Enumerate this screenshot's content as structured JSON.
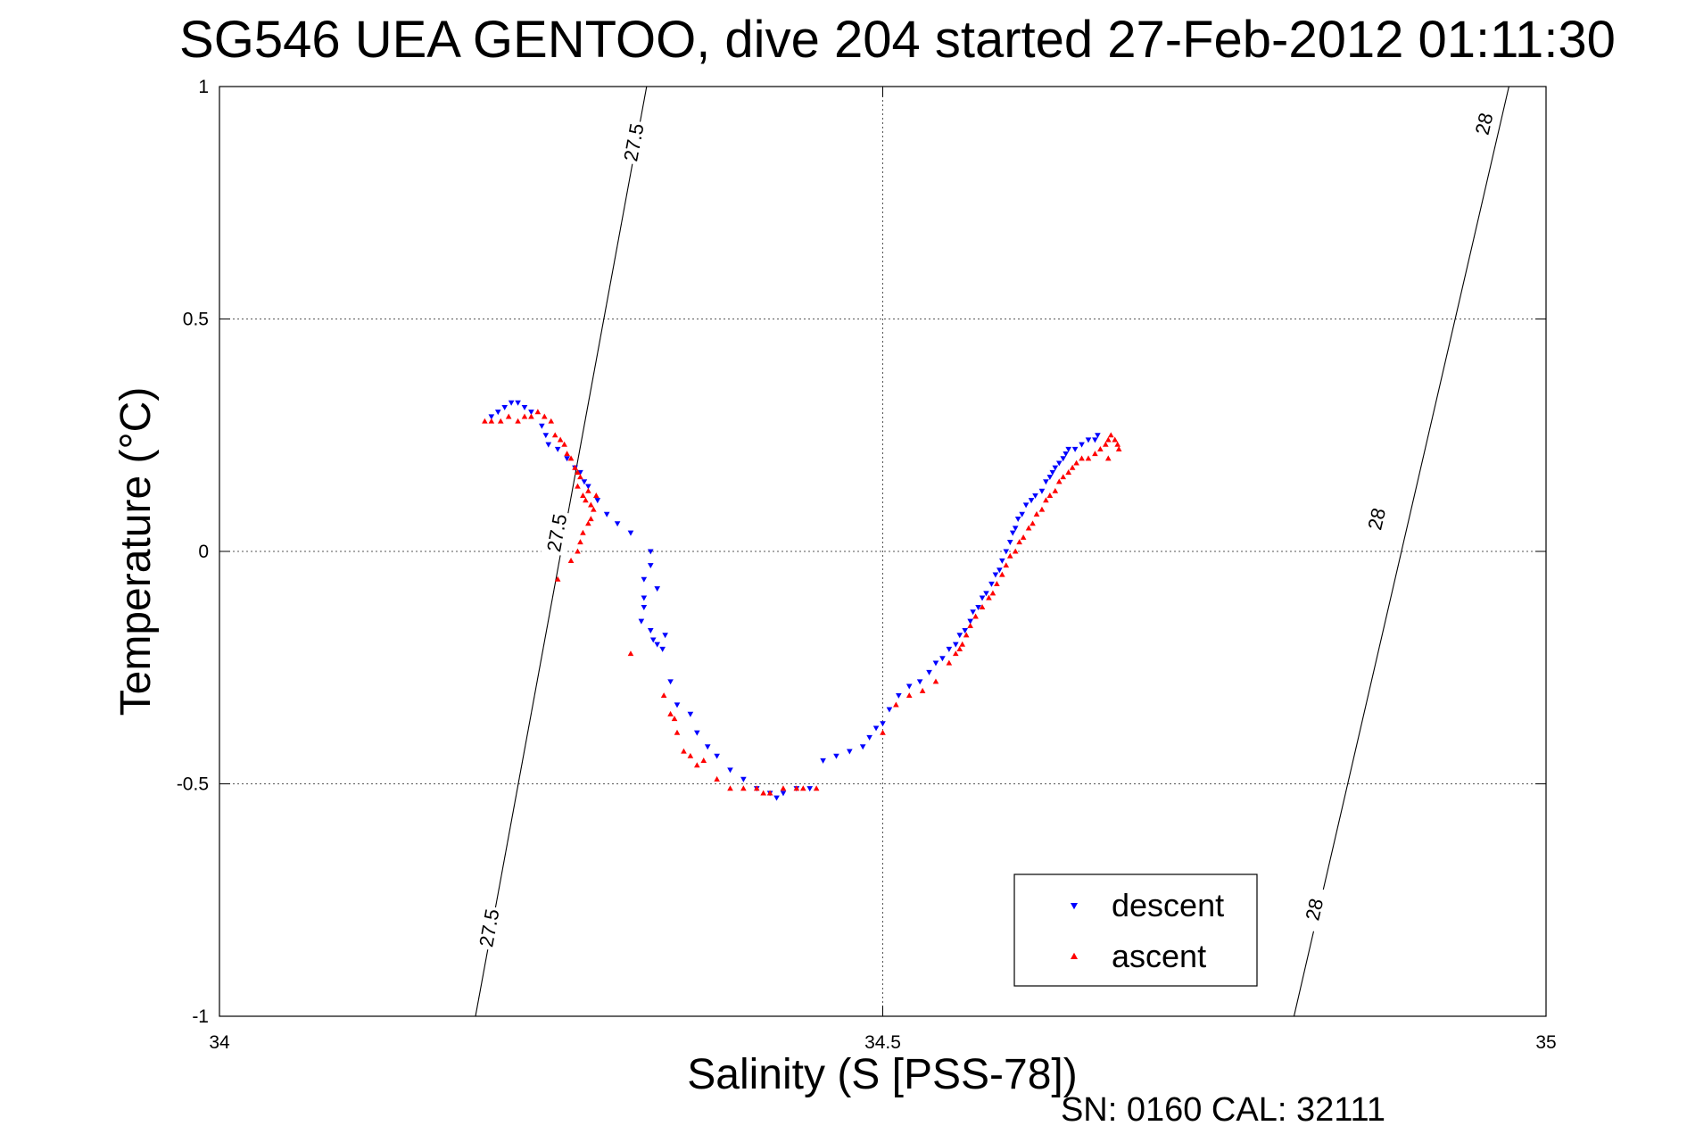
{
  "chart_data": {
    "type": "scatter",
    "title": "SG546 UEA GENTOO, dive 204 started 27-Feb-2012 01:11:30",
    "xlabel": "Salinity (S [PSS-78])",
    "ylabel": "Temperature (°C)",
    "xlim": [
      34,
      35
    ],
    "ylim": [
      -1,
      1
    ],
    "x_ticks": [
      34,
      34.5,
      35
    ],
    "x_tick_labels": [
      "34",
      "34.5",
      "35"
    ],
    "y_ticks": [
      -1,
      -0.5,
      0,
      0.5,
      1
    ],
    "y_tick_labels": [
      "-1",
      "-0.5",
      "0",
      "0.5",
      "1"
    ],
    "grid": true,
    "legend_position": "bottom-right",
    "footer": "SN: 0160  CAL: 32111",
    "density_contours": [
      {
        "label": "27.5",
        "endpoints": [
          [
            34.193,
            -1.0
          ],
          [
            34.322,
            1.0
          ]
        ],
        "label_positions": [
          [
            34.312,
            0.88
          ],
          [
            34.254,
            0.04
          ],
          [
            34.203,
            -0.81
          ]
        ]
      },
      {
        "label": "28",
        "endpoints": [
          [
            34.81,
            -1.0
          ],
          [
            34.972,
            1.0
          ]
        ],
        "label_positions": [
          [
            34.953,
            0.92
          ],
          [
            34.872,
            0.07
          ],
          [
            34.825,
            -0.77
          ]
        ]
      }
    ],
    "series": [
      {
        "name": "descent",
        "color": "#0000ff",
        "marker": "triangle-down",
        "points": [
          [
            34.205,
            0.29
          ],
          [
            34.21,
            0.3
          ],
          [
            34.215,
            0.31
          ],
          [
            34.22,
            0.32
          ],
          [
            34.225,
            0.32
          ],
          [
            34.23,
            0.31
          ],
          [
            34.235,
            0.3
          ],
          [
            34.243,
            0.27
          ],
          [
            34.246,
            0.25
          ],
          [
            34.248,
            0.23
          ],
          [
            34.255,
            0.22
          ],
          [
            34.262,
            0.2
          ],
          [
            34.268,
            0.18
          ],
          [
            34.272,
            0.17
          ],
          [
            34.275,
            0.15
          ],
          [
            34.278,
            0.14
          ],
          [
            34.285,
            0.11
          ],
          [
            34.292,
            0.08
          ],
          [
            34.3,
            0.06
          ],
          [
            34.31,
            0.04
          ],
          [
            34.325,
            0.0
          ],
          [
            34.325,
            -0.03
          ],
          [
            34.32,
            -0.06
          ],
          [
            34.32,
            -0.1
          ],
          [
            34.32,
            -0.12
          ],
          [
            34.33,
            -0.08
          ],
          [
            34.318,
            -0.15
          ],
          [
            34.325,
            -0.17
          ],
          [
            34.327,
            -0.19
          ],
          [
            34.33,
            -0.2
          ],
          [
            34.334,
            -0.21
          ],
          [
            34.336,
            -0.18
          ],
          [
            34.34,
            -0.28
          ],
          [
            34.345,
            -0.33
          ],
          [
            34.355,
            -0.35
          ],
          [
            34.36,
            -0.39
          ],
          [
            34.368,
            -0.42
          ],
          [
            34.375,
            -0.44
          ],
          [
            34.385,
            -0.47
          ],
          [
            34.395,
            -0.49
          ],
          [
            34.405,
            -0.51
          ],
          [
            34.415,
            -0.52
          ],
          [
            34.42,
            -0.53
          ],
          [
            34.425,
            -0.52
          ],
          [
            34.435,
            -0.51
          ],
          [
            34.445,
            -0.51
          ],
          [
            34.455,
            -0.45
          ],
          [
            34.465,
            -0.44
          ],
          [
            34.475,
            -0.43
          ],
          [
            34.485,
            -0.42
          ],
          [
            34.49,
            -0.4
          ],
          [
            34.495,
            -0.38
          ],
          [
            34.5,
            -0.37
          ],
          [
            34.505,
            -0.34
          ],
          [
            34.512,
            -0.31
          ],
          [
            34.52,
            -0.29
          ],
          [
            34.528,
            -0.28
          ],
          [
            34.535,
            -0.26
          ],
          [
            34.54,
            -0.24
          ],
          [
            34.545,
            -0.23
          ],
          [
            34.55,
            -0.21
          ],
          [
            34.555,
            -0.2
          ],
          [
            34.558,
            -0.18
          ],
          [
            34.562,
            -0.17
          ],
          [
            34.566,
            -0.15
          ],
          [
            34.568,
            -0.13
          ],
          [
            34.572,
            -0.12
          ],
          [
            34.575,
            -0.1
          ],
          [
            34.578,
            -0.09
          ],
          [
            34.582,
            -0.07
          ],
          [
            34.585,
            -0.05
          ],
          [
            34.588,
            -0.04
          ],
          [
            34.59,
            -0.02
          ],
          [
            34.593,
            0.0
          ],
          [
            34.596,
            0.02
          ],
          [
            34.598,
            0.04
          ],
          [
            34.6,
            0.05
          ],
          [
            34.602,
            0.07
          ],
          [
            34.605,
            0.08
          ],
          [
            34.608,
            0.1
          ],
          [
            34.612,
            0.11
          ],
          [
            34.615,
            0.12
          ],
          [
            34.62,
            0.13
          ],
          [
            34.623,
            0.15
          ],
          [
            34.626,
            0.16
          ],
          [
            34.628,
            0.17
          ],
          [
            34.63,
            0.18
          ],
          [
            34.633,
            0.19
          ],
          [
            34.636,
            0.2
          ],
          [
            34.638,
            0.21
          ],
          [
            34.64,
            0.22
          ],
          [
            34.645,
            0.22
          ],
          [
            34.65,
            0.23
          ],
          [
            34.655,
            0.24
          ],
          [
            34.66,
            0.24
          ],
          [
            34.662,
            0.25
          ]
        ]
      },
      {
        "name": "ascent",
        "color": "#ff0000",
        "marker": "triangle-up",
        "points": [
          [
            34.2,
            0.28
          ],
          [
            34.205,
            0.28
          ],
          [
            34.212,
            0.28
          ],
          [
            34.218,
            0.29
          ],
          [
            34.225,
            0.28
          ],
          [
            34.23,
            0.29
          ],
          [
            34.235,
            0.29
          ],
          [
            34.24,
            0.3
          ],
          [
            34.245,
            0.29
          ],
          [
            34.25,
            0.28
          ],
          [
            34.253,
            0.25
          ],
          [
            34.257,
            0.24
          ],
          [
            34.26,
            0.23
          ],
          [
            34.262,
            0.21
          ],
          [
            34.265,
            0.2
          ],
          [
            34.268,
            0.18
          ],
          [
            34.27,
            0.17
          ],
          [
            34.272,
            0.16
          ],
          [
            34.27,
            0.14
          ],
          [
            34.274,
            0.12
          ],
          [
            34.276,
            0.11
          ],
          [
            34.278,
            0.13
          ],
          [
            34.28,
            0.1
          ],
          [
            34.282,
            0.09
          ],
          [
            34.284,
            0.12
          ],
          [
            34.28,
            0.07
          ],
          [
            34.278,
            0.06
          ],
          [
            34.274,
            0.04
          ],
          [
            34.272,
            0.02
          ],
          [
            34.27,
            0.0
          ],
          [
            34.265,
            -0.02
          ],
          [
            34.255,
            -0.06
          ],
          [
            34.31,
            -0.22
          ],
          [
            34.335,
            -0.31
          ],
          [
            34.34,
            -0.35
          ],
          [
            34.343,
            -0.36
          ],
          [
            34.345,
            -0.39
          ],
          [
            34.35,
            -0.43
          ],
          [
            34.355,
            -0.44
          ],
          [
            34.36,
            -0.46
          ],
          [
            34.365,
            -0.45
          ],
          [
            34.375,
            -0.49
          ],
          [
            34.385,
            -0.51
          ],
          [
            34.395,
            -0.51
          ],
          [
            34.405,
            -0.51
          ],
          [
            34.41,
            -0.52
          ],
          [
            34.415,
            -0.52
          ],
          [
            34.425,
            -0.51
          ],
          [
            34.435,
            -0.51
          ],
          [
            34.44,
            -0.51
          ],
          [
            34.45,
            -0.51
          ],
          [
            34.5,
            -0.39
          ],
          [
            34.51,
            -0.33
          ],
          [
            34.52,
            -0.31
          ],
          [
            34.53,
            -0.3
          ],
          [
            34.54,
            -0.28
          ],
          [
            34.55,
            -0.24
          ],
          [
            34.555,
            -0.22
          ],
          [
            34.558,
            -0.21
          ],
          [
            34.56,
            -0.2
          ],
          [
            34.563,
            -0.18
          ],
          [
            34.566,
            -0.16
          ],
          [
            34.57,
            -0.14
          ],
          [
            34.575,
            -0.12
          ],
          [
            34.58,
            -0.1
          ],
          [
            34.583,
            -0.09
          ],
          [
            34.586,
            -0.07
          ],
          [
            34.59,
            -0.05
          ],
          [
            34.593,
            -0.03
          ],
          [
            34.596,
            -0.01
          ],
          [
            34.6,
            0.0
          ],
          [
            34.603,
            0.02
          ],
          [
            34.606,
            0.03
          ],
          [
            34.61,
            0.05
          ],
          [
            34.613,
            0.06
          ],
          [
            34.616,
            0.08
          ],
          [
            34.62,
            0.09
          ],
          [
            34.623,
            0.11
          ],
          [
            34.626,
            0.12
          ],
          [
            34.63,
            0.13
          ],
          [
            34.633,
            0.15
          ],
          [
            34.636,
            0.16
          ],
          [
            34.64,
            0.17
          ],
          [
            34.643,
            0.18
          ],
          [
            34.646,
            0.19
          ],
          [
            34.65,
            0.2
          ],
          [
            34.655,
            0.2
          ],
          [
            34.66,
            0.21
          ],
          [
            34.664,
            0.22
          ],
          [
            34.668,
            0.23
          ],
          [
            34.67,
            0.24
          ],
          [
            34.672,
            0.25
          ],
          [
            34.675,
            0.24
          ],
          [
            34.677,
            0.23
          ],
          [
            34.678,
            0.22
          ],
          [
            34.67,
            0.2
          ]
        ]
      }
    ]
  }
}
